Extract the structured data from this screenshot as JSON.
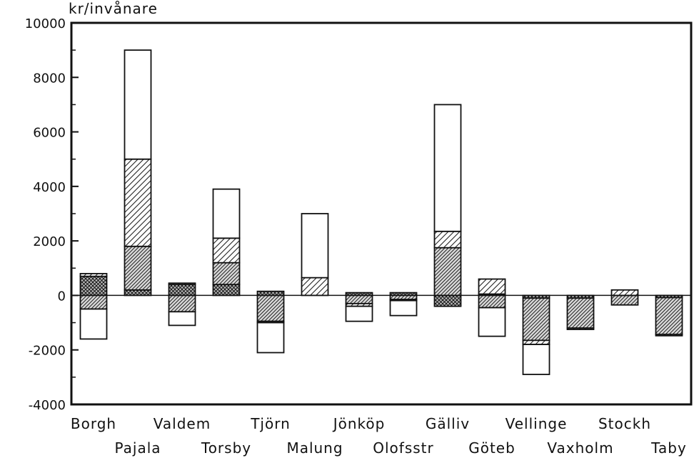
{
  "chart_data": {
    "type": "bar",
    "stacked": true,
    "ylabel": "kr/invånare",
    "ylim": [
      -4000,
      10000
    ],
    "yticks": [
      -4000,
      -2000,
      0,
      2000,
      4000,
      6000,
      8000,
      10000
    ],
    "grid": false,
    "categories": [
      "Borgh",
      "Pajala",
      "Valdem",
      "Torsby",
      "Tjörn",
      "Malung",
      "Jönköp",
      "Olofsstr",
      "Gälliv",
      "Göteb",
      "Vellinge",
      "Vaxholm",
      "Stockh",
      "Taby"
    ],
    "series": [
      {
        "pattern": "crosshatch",
        "values": [
          700,
          200,
          400,
          400,
          150,
          0,
          100,
          100,
          -400,
          50,
          -100,
          -100,
          0,
          -80
        ]
      },
      {
        "pattern": "dense-diagonal",
        "values": [
          -500,
          1600,
          -600,
          800,
          -950,
          0,
          -300,
          -150,
          1750,
          -450,
          -1550,
          -1100,
          -350,
          -1350
        ]
      },
      {
        "pattern": "diagonal",
        "values": [
          100,
          3200,
          50,
          900,
          -50,
          650,
          -100,
          -40,
          600,
          550,
          -150,
          -50,
          200,
          -50
        ]
      },
      {
        "pattern": "blank",
        "values": [
          -1100,
          4000,
          -500,
          1800,
          -1100,
          2350,
          -550,
          -550,
          4650,
          -1050,
          -1100,
          0,
          0,
          0
        ]
      }
    ]
  }
}
